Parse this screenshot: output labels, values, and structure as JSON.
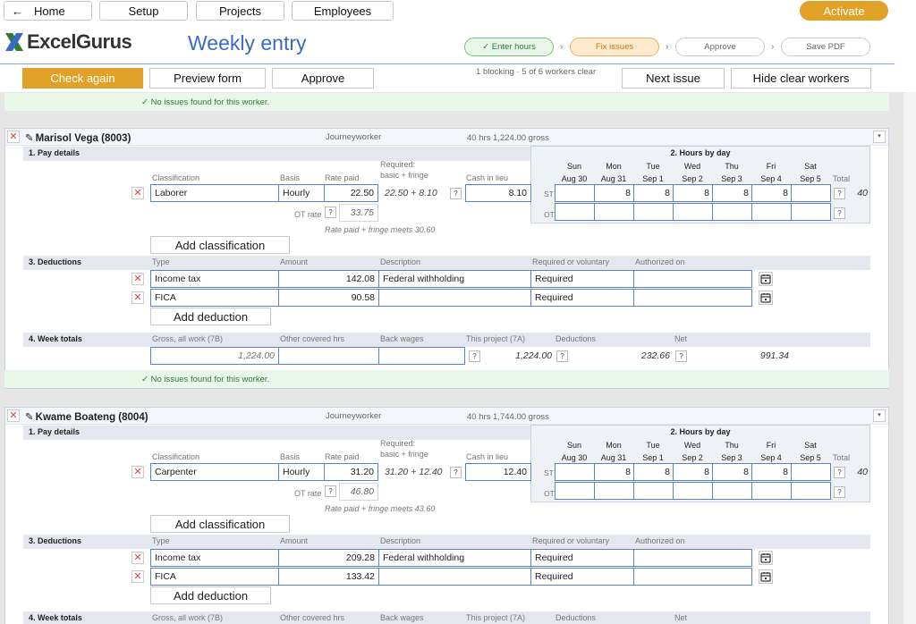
{
  "nav": {
    "home": "Home",
    "setup": "Setup",
    "projects": "Projects",
    "employees": "Employees",
    "activate": "Activate"
  },
  "brand": {
    "logo": "ExcelGurus",
    "page_title": "Weekly entry"
  },
  "steps": [
    {
      "label": "✓ Enter hours",
      "state": "done"
    },
    {
      "label": "Fix issues",
      "state": "current"
    },
    {
      "label": "Approve",
      "state": "todo"
    },
    {
      "label": "Save PDF",
      "state": "todo"
    }
  ],
  "toolbar": {
    "check_again": "Check again",
    "preview_form": "Preview form",
    "approve": "Approve",
    "summary": "1 blocking · 5 of 6 workers clear",
    "next_issue": "Next issue",
    "hide_clear": "Hide clear workers"
  },
  "ok_message": "✓ No issues found for this worker.",
  "labels": {
    "pay_details": "1. Pay details",
    "hours_by_day": "2. Hours by day",
    "deductions": "3. Deductions",
    "week_totals": "4. Week totals",
    "classification": "Classification",
    "basis": "Basis",
    "rate_paid": "Rate paid",
    "required_1": "Required:",
    "required_2": "basic + fringe",
    "cash_in_lieu": "Cash in lieu",
    "total": "Total",
    "ot_rate": "OT rate",
    "add_classification": "Add classification",
    "type": "Type",
    "amount": "Amount",
    "description": "Description",
    "req_vol": "Required or voluntary",
    "authorized_on": "Authorized on",
    "add_deduction": "Add deduction",
    "gross_all": "Gross, all work (7B)",
    "other_hrs": "Other covered hrs",
    "back_wages": "Back wages",
    "this_project": "This project (7A)",
    "ded_col": "Deductions",
    "net": "Net",
    "st": "ST",
    "ot": "OT",
    "q": "?"
  },
  "days": [
    {
      "d": "Sun",
      "date": "Aug 30"
    },
    {
      "d": "Mon",
      "date": "Aug 31"
    },
    {
      "d": "Tue",
      "date": "Sep 1"
    },
    {
      "d": "Wed",
      "date": "Sep 2"
    },
    {
      "d": "Thu",
      "date": "Sep 3"
    },
    {
      "d": "Fri",
      "date": "Sep 4"
    },
    {
      "d": "Sat",
      "date": "Sep 5"
    }
  ],
  "workers": [
    {
      "name": "Marisol Vega (8003)",
      "role": "Journeyworker",
      "summary": "40 hrs   1,224.00 gross",
      "classification": "Laborer",
      "basis": "Hourly",
      "rate_paid": "22.50",
      "required": "22.50 + 8.10",
      "cash_in_lieu": "8.10",
      "ot_rate": "33.75",
      "note": "Rate paid + fringe meets 30.60",
      "st_hours": [
        "",
        "8",
        "8",
        "8",
        "8",
        "8",
        ""
      ],
      "total": "40",
      "deductions": [
        {
          "type": "Income tax",
          "amount": "142.08",
          "description": "Federal withholding",
          "req": "Required",
          "authorized": ""
        },
        {
          "type": "FICA",
          "amount": "90.58",
          "description": "",
          "req": "Required",
          "authorized": ""
        }
      ],
      "totals": {
        "gross": "1,224.00",
        "other_hrs": "",
        "back_wages": "",
        "this_project": "1,224.00",
        "deductions": "232.66",
        "net": "991.34"
      }
    },
    {
      "name": "Kwame Boateng (8004)",
      "role": "Journeyworker",
      "summary": "40 hrs   1,744.00 gross",
      "classification": "Carpenter",
      "basis": "Hourly",
      "rate_paid": "31.20",
      "required": "31.20 + 12.40",
      "cash_in_lieu": "12.40",
      "ot_rate": "46.80",
      "note": "Rate paid + fringe meets 43.60",
      "st_hours": [
        "",
        "8",
        "8",
        "8",
        "8",
        "8",
        ""
      ],
      "total": "40",
      "deductions": [
        {
          "type": "Income tax",
          "amount": "209.28",
          "description": "Federal withholding",
          "req": "Required",
          "authorized": ""
        },
        {
          "type": "FICA",
          "amount": "133.42",
          "description": "",
          "req": "Required",
          "authorized": ""
        }
      ]
    }
  ]
}
